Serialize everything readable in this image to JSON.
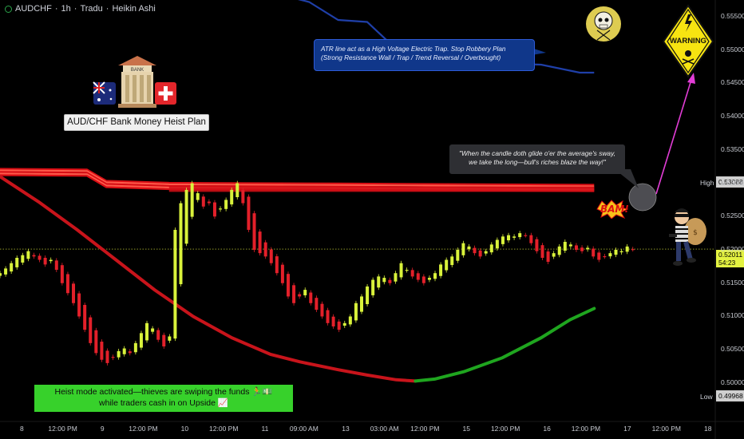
{
  "header": {
    "symbol": "AUDCHF",
    "interval": "1h",
    "source": "Tradu",
    "chart_style": "Heikin Ashi",
    "separator": "·"
  },
  "annotations": {
    "atr_note_line1": "ATR line act as a High Voltage Electric Trap. Stop Robbery Plan",
    "atr_note_line2": "(Strong Resistance Wall / Trap / Trend Reversal / Overbought)",
    "quote_line1": "\"When the candle doth glide o'er the average's sway,",
    "quote_line2": "we take the long—bull's riches blaze the way!\"",
    "plan_title": "AUD/CHF Bank Money Heist Plan",
    "bank_sign": "BANK",
    "warning_text": "WARNING",
    "bam_text": "BAM!",
    "heist_line1": "Heist mode activated—thieves are swiping the funds 🏃💵",
    "heist_line2": "while traders cash in on Upside 📈"
  },
  "price_tags": {
    "high_label": "High",
    "high_value": "0.53088",
    "low_label": "Low",
    "low_value": "0.49968",
    "current_value": "0.52011",
    "countdown": "54:23"
  },
  "colors": {
    "background": "#000000",
    "atr_line": "#1f3fa8",
    "resistance": "#e0141b",
    "ma_bear": "#c8141b",
    "ma_bull": "#1fa51f",
    "candle_up": "#d9f23b",
    "candle_down": "#e3202a",
    "arrow": "#e23dd6",
    "heist_box": "#37d12b"
  },
  "chart_data": {
    "type": "candlestick",
    "y_axis": {
      "ticks": [
        "0.55500",
        "0.55000",
        "0.54500",
        "0.54000",
        "0.53500",
        "0.53000",
        "0.52500",
        "0.52000",
        "0.51500",
        "0.51000",
        "0.50500",
        "0.50000"
      ],
      "range": [
        0.4952,
        0.5575
      ]
    },
    "x_axis": {
      "ticks": [
        "8",
        "12:00 PM",
        "9",
        "12:00 PM",
        "10",
        "12:00 PM",
        "11",
        "09:00 AM",
        "13",
        "03:00 AM",
        "12:00 PM",
        "15",
        "12:00 PM",
        "16",
        "12:00 PM",
        "17",
        "12:00 PM",
        "18"
      ]
    },
    "x_range": [
      0,
      136
    ],
    "grid": false,
    "candles_close": [
      0.5165,
      0.5172,
      0.518,
      0.5188,
      0.5192,
      0.5198,
      0.519,
      0.5185,
      0.5178,
      0.5185,
      0.517,
      0.515,
      0.5135,
      0.512,
      0.51,
      0.508,
      0.506,
      0.5045,
      0.5035,
      0.503,
      0.5038,
      0.5048,
      0.5052,
      0.5045,
      0.506,
      0.5075,
      0.509,
      0.5082,
      0.5065,
      0.5055,
      0.507,
      0.523,
      0.527,
      0.529,
      0.53,
      0.5285,
      0.5265,
      0.527,
      0.525,
      0.5262,
      0.5275,
      0.529,
      0.53,
      0.527,
      0.523,
      0.52,
      0.5195,
      0.519,
      0.518,
      0.5165,
      0.515,
      0.513,
      0.512,
      0.513,
      0.514,
      0.512,
      0.511,
      0.51,
      0.509,
      0.5085,
      0.508,
      0.509,
      0.51,
      0.512,
      0.513,
      0.5145,
      0.5155,
      0.516,
      0.5158,
      0.515,
      0.5165,
      0.518,
      0.517,
      0.516,
      0.5155,
      0.515,
      0.5158,
      0.5165,
      0.5178,
      0.5185,
      0.519,
      0.52,
      0.521,
      0.5205,
      0.5195,
      0.519,
      0.5198,
      0.5208,
      0.5215,
      0.522,
      0.5222,
      0.522,
      0.5225,
      0.5222,
      0.521,
      0.5198,
      0.5188,
      0.5182,
      0.5195,
      0.5205,
      0.5212,
      0.5208,
      0.52,
      0.5198,
      0.5203,
      0.519,
      0.5185,
      0.519,
      0.5195,
      0.52,
      0.5198,
      0.5205,
      0.5201
    ],
    "resistance_zone": [
      0.5287,
      0.5295
    ],
    "atr_line_points": [
      [
        0,
        0.5583
      ],
      [
        58,
        0.5583
      ],
      [
        64,
        0.5572
      ],
      [
        70,
        0.5545
      ],
      [
        76,
        0.5542
      ],
      [
        80,
        0.5515
      ],
      [
        84,
        0.5508
      ],
      [
        88,
        0.5505
      ],
      [
        92,
        0.5497
      ],
      [
        97,
        0.5482
      ],
      [
        103,
        0.548
      ],
      [
        112,
        0.5478
      ],
      [
        120,
        0.5466
      ],
      [
        123,
        0.5466
      ]
    ],
    "red_band_points": [
      [
        0,
        0.5318
      ],
      [
        18,
        0.5317
      ],
      [
        22,
        0.53
      ],
      [
        35,
        0.5297
      ],
      [
        70,
        0.5296
      ],
      [
        123,
        0.5294
      ]
    ],
    "moving_average": {
      "points": [
        [
          0,
          0.531
        ],
        [
          8,
          0.5272
        ],
        [
          16,
          0.523
        ],
        [
          24,
          0.5185
        ],
        [
          32,
          0.514
        ],
        [
          40,
          0.51
        ],
        [
          48,
          0.5068
        ],
        [
          56,
          0.5043
        ],
        [
          62,
          0.5032
        ],
        [
          70,
          0.502
        ],
        [
          76,
          0.5012
        ],
        [
          82,
          0.5005
        ],
        [
          86,
          0.5003
        ],
        [
          90,
          0.5006
        ],
        [
          96,
          0.5017
        ],
        [
          104,
          0.5038
        ],
        [
          112,
          0.5068
        ],
        [
          118,
          0.5095
        ],
        [
          123,
          0.5112
        ]
      ],
      "bull_from_x": 86
    }
  }
}
